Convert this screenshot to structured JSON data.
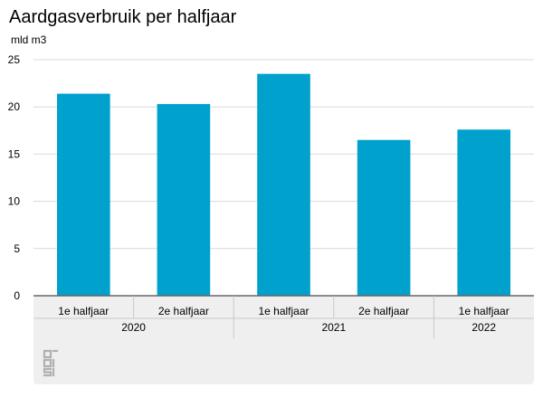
{
  "chart_data": {
    "type": "bar",
    "title": "Aardgasverbruik per halfjaar",
    "ylabel": "mld m3",
    "xlabel": "",
    "ylim": [
      0,
      25
    ],
    "yticks": [
      0,
      5,
      10,
      15,
      20,
      25
    ],
    "grid": true,
    "categories": [
      {
        "half": "1e halfjaar",
        "year": "2020"
      },
      {
        "half": "2e halfjaar",
        "year": "2020"
      },
      {
        "half": "1e halfjaar",
        "year": "2021"
      },
      {
        "half": "2e halfjaar",
        "year": "2021"
      },
      {
        "half": "1e halfjaar",
        "year": "2022"
      }
    ],
    "years": [
      "2020",
      "2021",
      "2022"
    ],
    "values": [
      21.4,
      20.3,
      23.5,
      16.5,
      17.6
    ],
    "bar_color": "#00a1cd",
    "grid_color": "#d9d9d9",
    "axis_color": "#666666",
    "footer_color": "#efefef",
    "logo_icon": "cbs-logo-icon",
    "logo_color": "#b0b0b0"
  }
}
